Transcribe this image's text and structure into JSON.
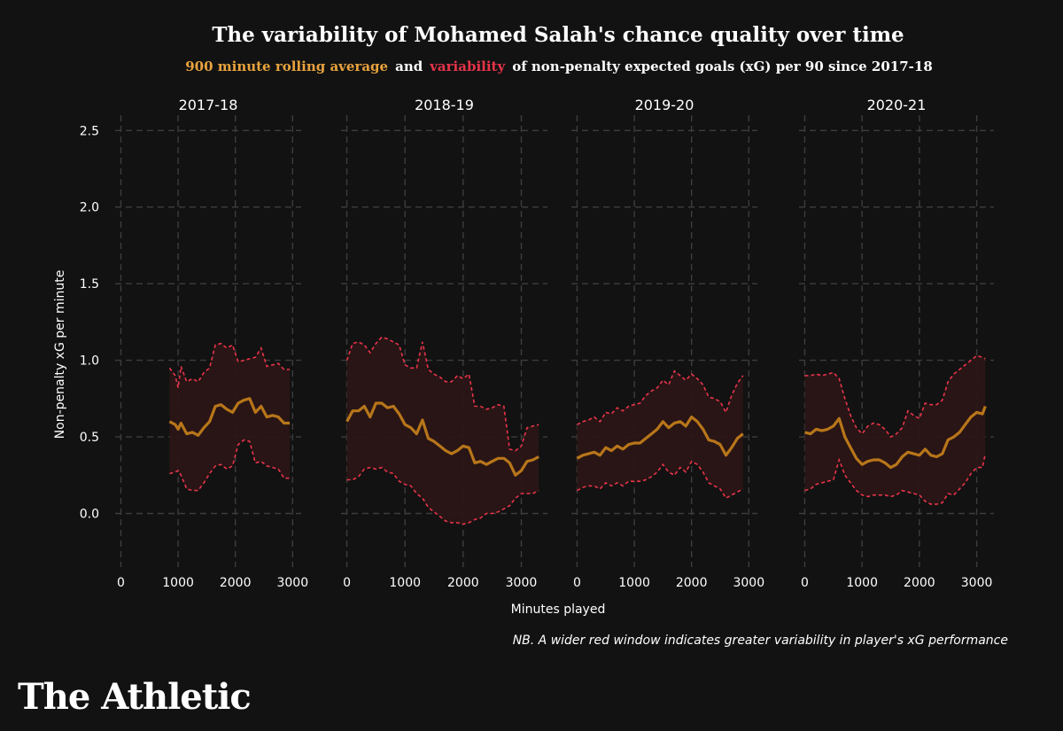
{
  "header": {
    "title": "The variability of Mohamed Salah's chance quality over time",
    "subtitle_avg": "900 minute rolling average",
    "subtitle_and": "and",
    "subtitle_var": "variability",
    "subtitle_rest": "of non-penalty expected goals (xG) per 90 since 2017-18"
  },
  "footer": {
    "note": "NB. A wider red window indicates greater variability in player's xG performance",
    "logo": "The Athletic"
  },
  "colors": {
    "background": "#121212",
    "average": "#e8a33d",
    "average_line": "#b8761a",
    "variability": "#e8344a",
    "band_fill": "#2b1616",
    "grid": "#3d3d3d",
    "text": "#ffffff"
  },
  "chart_data": {
    "type": "line",
    "title": "The variability of Mohamed Salah's chance quality over time",
    "ylabel": "Non-penalty xG per minute",
    "xlabel": "Minutes played",
    "ylim": [
      -0.35,
      2.6
    ],
    "yticks": [
      0.0,
      0.5,
      1.0,
      1.5,
      2.0,
      2.5
    ],
    "ytick_labels": [
      "0.0",
      "0.5",
      "1.0",
      "1.5",
      "2.0",
      "2.5"
    ],
    "grid": true,
    "panels": [
      {
        "name": "2017-18",
        "xlim": [
          -100,
          3150
        ],
        "xticks": [
          0,
          1000,
          2000,
          3000
        ],
        "xtick_labels": [
          "0",
          "1000",
          "2000",
          "3000"
        ],
        "x": [
          850,
          950,
          1000,
          1050,
          1150,
          1250,
          1350,
          1450,
          1550,
          1650,
          1750,
          1850,
          1950,
          2050,
          2150,
          2250,
          2350,
          2450,
          2550,
          2650,
          2750,
          2850,
          2950
        ],
        "avg": [
          0.6,
          0.58,
          0.55,
          0.59,
          0.52,
          0.53,
          0.51,
          0.56,
          0.6,
          0.7,
          0.71,
          0.68,
          0.66,
          0.72,
          0.74,
          0.75,
          0.66,
          0.7,
          0.63,
          0.64,
          0.63,
          0.59,
          0.59
        ],
        "upper": [
          0.95,
          0.9,
          0.82,
          0.96,
          0.86,
          0.88,
          0.86,
          0.92,
          0.95,
          1.1,
          1.11,
          1.08,
          1.1,
          0.99,
          1.0,
          1.01,
          1.02,
          1.08,
          0.96,
          0.97,
          0.98,
          0.94,
          0.94
        ],
        "lower": [
          0.26,
          0.27,
          0.28,
          0.25,
          0.16,
          0.15,
          0.15,
          0.2,
          0.26,
          0.31,
          0.32,
          0.29,
          0.31,
          0.45,
          0.48,
          0.47,
          0.33,
          0.34,
          0.31,
          0.3,
          0.29,
          0.23,
          0.23
        ]
      },
      {
        "name": "2018-19",
        "xlim": [
          -100,
          3450
        ],
        "xticks": [
          0,
          1000,
          2000,
          3000
        ],
        "xtick_labels": [
          "0",
          "1000",
          "2000",
          "3000"
        ],
        "x": [
          0,
          100,
          200,
          300,
          400,
          500,
          600,
          700,
          800,
          900,
          1000,
          1100,
          1200,
          1300,
          1400,
          1500,
          1600,
          1700,
          1800,
          1900,
          2000,
          2100,
          2200,
          2300,
          2400,
          2500,
          2600,
          2700,
          2800,
          2900,
          3000,
          3100,
          3200,
          3300
        ],
        "avg": [
          0.6,
          0.67,
          0.67,
          0.7,
          0.63,
          0.72,
          0.72,
          0.69,
          0.7,
          0.65,
          0.58,
          0.56,
          0.52,
          0.61,
          0.49,
          0.47,
          0.44,
          0.41,
          0.39,
          0.41,
          0.44,
          0.43,
          0.33,
          0.34,
          0.32,
          0.34,
          0.36,
          0.36,
          0.33,
          0.25,
          0.28,
          0.34,
          0.35,
          0.37
        ],
        "upper": [
          1.0,
          1.11,
          1.12,
          1.1,
          1.05,
          1.11,
          1.15,
          1.14,
          1.12,
          1.1,
          0.97,
          0.95,
          0.95,
          1.12,
          0.94,
          0.91,
          0.89,
          0.86,
          0.86,
          0.9,
          0.88,
          0.91,
          0.7,
          0.7,
          0.68,
          0.69,
          0.71,
          0.7,
          0.42,
          0.41,
          0.44,
          0.56,
          0.57,
          0.58
        ],
        "lower": [
          0.22,
          0.22,
          0.24,
          0.29,
          0.3,
          0.29,
          0.3,
          0.27,
          0.26,
          0.21,
          0.19,
          0.18,
          0.13,
          0.1,
          0.04,
          0.01,
          -0.02,
          -0.05,
          -0.06,
          -0.06,
          -0.07,
          -0.06,
          -0.04,
          -0.03,
          0.0,
          0.0,
          0.01,
          0.03,
          0.05,
          0.1,
          0.13,
          0.13,
          0.13,
          0.15
        ]
      },
      {
        "name": "2019-20",
        "xlim": [
          -100,
          3150
        ],
        "xticks": [
          0,
          1000,
          2000,
          3000
        ],
        "xtick_labels": [
          "0",
          "1000",
          "2000",
          "3000"
        ],
        "x": [
          0,
          100,
          200,
          300,
          400,
          500,
          600,
          700,
          800,
          900,
          1000,
          1100,
          1200,
          1300,
          1400,
          1500,
          1600,
          1700,
          1800,
          1900,
          2000,
          2100,
          2200,
          2300,
          2400,
          2500,
          2600,
          2700,
          2800,
          2900
        ],
        "avg": [
          0.36,
          0.38,
          0.39,
          0.4,
          0.38,
          0.43,
          0.41,
          0.44,
          0.42,
          0.45,
          0.46,
          0.46,
          0.49,
          0.52,
          0.55,
          0.6,
          0.56,
          0.59,
          0.6,
          0.57,
          0.63,
          0.6,
          0.55,
          0.48,
          0.47,
          0.45,
          0.38,
          0.43,
          0.49,
          0.52
        ],
        "upper": [
          0.58,
          0.6,
          0.61,
          0.63,
          0.6,
          0.66,
          0.65,
          0.69,
          0.67,
          0.7,
          0.71,
          0.72,
          0.77,
          0.8,
          0.82,
          0.87,
          0.84,
          0.93,
          0.9,
          0.87,
          0.91,
          0.88,
          0.84,
          0.76,
          0.75,
          0.73,
          0.66,
          0.77,
          0.85,
          0.9
        ],
        "lower": [
          0.15,
          0.17,
          0.18,
          0.18,
          0.16,
          0.2,
          0.18,
          0.2,
          0.18,
          0.21,
          0.21,
          0.21,
          0.22,
          0.24,
          0.27,
          0.32,
          0.27,
          0.25,
          0.3,
          0.27,
          0.34,
          0.32,
          0.27,
          0.2,
          0.18,
          0.16,
          0.1,
          0.12,
          0.14,
          0.16
        ]
      },
      {
        "name": "2020-21",
        "xlim": [
          -100,
          3300
        ],
        "xticks": [
          0,
          1000,
          2000,
          3000
        ],
        "xtick_labels": [
          "0",
          "1000",
          "2000",
          "3000"
        ],
        "x": [
          0,
          100,
          200,
          300,
          400,
          500,
          600,
          700,
          800,
          900,
          1000,
          1100,
          1200,
          1300,
          1400,
          1500,
          1600,
          1700,
          1800,
          1900,
          2000,
          2100,
          2200,
          2300,
          2400,
          2500,
          2600,
          2700,
          2800,
          2900,
          3000,
          3100,
          3150
        ],
        "avg": [
          0.53,
          0.52,
          0.55,
          0.54,
          0.55,
          0.57,
          0.62,
          0.5,
          0.43,
          0.36,
          0.32,
          0.34,
          0.35,
          0.35,
          0.33,
          0.3,
          0.32,
          0.37,
          0.4,
          0.39,
          0.38,
          0.42,
          0.38,
          0.37,
          0.39,
          0.48,
          0.5,
          0.53,
          0.58,
          0.63,
          0.66,
          0.65,
          0.7
        ],
        "upper": [
          0.9,
          0.9,
          0.91,
          0.9,
          0.91,
          0.92,
          0.88,
          0.75,
          0.64,
          0.56,
          0.52,
          0.57,
          0.59,
          0.58,
          0.55,
          0.5,
          0.52,
          0.56,
          0.67,
          0.64,
          0.62,
          0.72,
          0.71,
          0.71,
          0.74,
          0.86,
          0.91,
          0.94,
          0.97,
          1.0,
          1.03,
          1.02,
          1.01
        ],
        "lower": [
          0.15,
          0.16,
          0.19,
          0.2,
          0.21,
          0.22,
          0.35,
          0.25,
          0.2,
          0.15,
          0.12,
          0.11,
          0.12,
          0.12,
          0.12,
          0.11,
          0.12,
          0.15,
          0.14,
          0.13,
          0.12,
          0.08,
          0.06,
          0.06,
          0.07,
          0.13,
          0.12,
          0.16,
          0.2,
          0.26,
          0.3,
          0.3,
          0.39
        ]
      }
    ]
  }
}
